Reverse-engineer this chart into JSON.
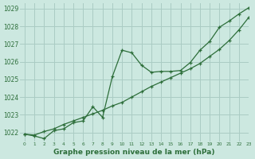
{
  "background_color": "#cce8e0",
  "grid_color": "#aaccC4",
  "line_color": "#2d6e3a",
  "title": "Graphe pression niveau de la mer (hPa)",
  "xlim": [
    -0.5,
    23
  ],
  "ylim": [
    1021.5,
    1029.3
  ],
  "yticks": [
    1022,
    1023,
    1024,
    1025,
    1026,
    1027,
    1028,
    1029
  ],
  "xticks": [
    0,
    1,
    2,
    3,
    4,
    5,
    6,
    7,
    8,
    9,
    10,
    11,
    12,
    13,
    14,
    15,
    16,
    17,
    18,
    19,
    20,
    21,
    22,
    23
  ],
  "line1_x": [
    0,
    1,
    2,
    3,
    4,
    5,
    6,
    7,
    8,
    9,
    10,
    11,
    12,
    13,
    14,
    15,
    16,
    17,
    18,
    19,
    20,
    21,
    22,
    23
  ],
  "line1_y": [
    1021.9,
    1021.85,
    1022.05,
    1022.2,
    1022.45,
    1022.65,
    1022.85,
    1023.05,
    1023.25,
    1023.5,
    1023.7,
    1024.0,
    1024.3,
    1024.6,
    1024.85,
    1025.1,
    1025.35,
    1025.6,
    1025.9,
    1026.3,
    1026.7,
    1027.2,
    1027.8,
    1028.5
  ],
  "line2_x": [
    0,
    1,
    2,
    3,
    4,
    5,
    6,
    7,
    8,
    9,
    10,
    11,
    12,
    13,
    14,
    15,
    16,
    17,
    18,
    19,
    20,
    21,
    22,
    23
  ],
  "line2_y": [
    1021.9,
    1021.8,
    1021.65,
    1022.1,
    1022.2,
    1022.55,
    1022.65,
    1023.45,
    1022.85,
    1025.15,
    1026.65,
    1026.5,
    1025.8,
    1025.4,
    1025.45,
    1025.45,
    1025.5,
    1025.95,
    1026.65,
    1027.15,
    1027.95,
    1028.3,
    1028.7,
    1029.05
  ]
}
